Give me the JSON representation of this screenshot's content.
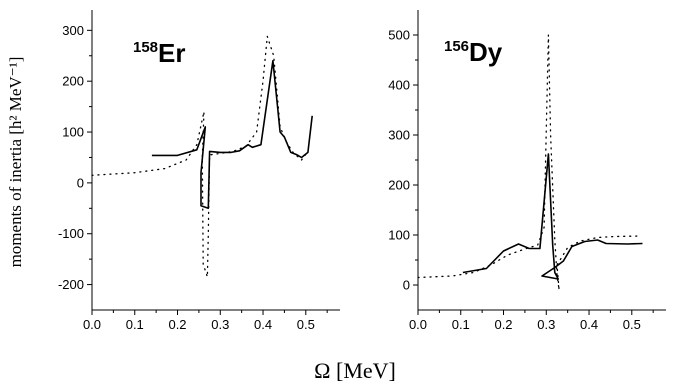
{
  "y_axis_label": "moments of inertia [h² MeV⁻¹]",
  "x_axis_label": "Ω  [MeV]",
  "chart_data": [
    {
      "type": "line",
      "id": "er",
      "nucleus_mass": "158",
      "nucleus_symbol": "Er",
      "xlim": [
        0.0,
        0.58
      ],
      "ylim": [
        -250,
        340
      ],
      "x_ticks": [
        0.0,
        0.1,
        0.2,
        0.3,
        0.4,
        0.5
      ],
      "x_tick_labels": [
        "0.0",
        "0.1",
        "0.2",
        "0.3",
        "0.4",
        "0.5"
      ],
      "y_ticks": [
        -200,
        -100,
        0,
        100,
        200,
        300
      ],
      "y_tick_labels": [
        "-200",
        "-100",
        "0",
        "100",
        "200",
        "300"
      ],
      "series": [
        {
          "style": "solid",
          "points": [
            [
              0.14,
              54
            ],
            [
              0.2,
              54
            ],
            [
              0.245,
              65
            ],
            [
              0.265,
              110
            ],
            [
              0.255,
              20
            ],
            [
              0.255,
              -45
            ],
            [
              0.272,
              -50
            ],
            [
              0.275,
              62
            ],
            [
              0.3,
              60
            ],
            [
              0.325,
              60
            ],
            [
              0.345,
              63
            ],
            [
              0.365,
              75
            ],
            [
              0.375,
              70
            ],
            [
              0.395,
              75
            ],
            [
              0.423,
              240
            ],
            [
              0.44,
              100
            ],
            [
              0.45,
              90
            ],
            [
              0.465,
              60
            ],
            [
              0.48,
              55
            ],
            [
              0.49,
              50
            ],
            [
              0.505,
              60
            ],
            [
              0.515,
              132
            ]
          ]
        },
        {
          "style": "dotted",
          "points": [
            [
              0.0,
              15
            ],
            [
              0.1,
              20
            ],
            [
              0.17,
              28
            ],
            [
              0.22,
              45
            ],
            [
              0.245,
              75
            ],
            [
              0.262,
              140
            ],
            [
              0.258,
              50
            ],
            [
              0.26,
              -160
            ],
            [
              0.27,
              -185
            ],
            [
              0.272,
              -100
            ],
            [
              0.275,
              55
            ],
            [
              0.3,
              58
            ],
            [
              0.33,
              62
            ],
            [
              0.36,
              72
            ],
            [
              0.385,
              100
            ],
            [
              0.4,
              200
            ],
            [
              0.41,
              288
            ],
            [
              0.425,
              250
            ],
            [
              0.44,
              110
            ],
            [
              0.455,
              80
            ],
            [
              0.47,
              60
            ],
            [
              0.49,
              45
            ],
            [
              0.505,
              62
            ]
          ]
        }
      ]
    },
    {
      "type": "line",
      "id": "dy",
      "nucleus_mass": "156",
      "nucleus_symbol": "Dy",
      "xlim": [
        0.0,
        0.58
      ],
      "ylim": [
        -50,
        550
      ],
      "x_ticks": [
        0.0,
        0.1,
        0.2,
        0.3,
        0.4,
        0.5
      ],
      "x_tick_labels": [
        "0.0",
        "0.1",
        "0.2",
        "0.3",
        "0.4",
        "0.5"
      ],
      "y_ticks": [
        0,
        100,
        200,
        300,
        400,
        500
      ],
      "y_tick_labels": [
        "0",
        "100",
        "200",
        "300",
        "400",
        "500"
      ],
      "series": [
        {
          "style": "solid",
          "points": [
            [
              0.105,
              25
            ],
            [
              0.16,
              33
            ],
            [
              0.2,
              68
            ],
            [
              0.235,
              82
            ],
            [
              0.26,
              73
            ],
            [
              0.285,
              73
            ],
            [
              0.305,
              262
            ],
            [
              0.315,
              80
            ],
            [
              0.32,
              25
            ],
            [
              0.328,
              12
            ],
            [
              0.29,
              18
            ],
            [
              0.32,
              35
            ],
            [
              0.34,
              48
            ],
            [
              0.36,
              77
            ],
            [
              0.39,
              87
            ],
            [
              0.42,
              90
            ],
            [
              0.44,
              83
            ],
            [
              0.49,
              82
            ],
            [
              0.525,
              83
            ]
          ]
        },
        {
          "style": "dotted",
          "points": [
            [
              0.0,
              15
            ],
            [
              0.08,
              18
            ],
            [
              0.13,
              25
            ],
            [
              0.17,
              40
            ],
            [
              0.21,
              60
            ],
            [
              0.25,
              72
            ],
            [
              0.28,
              80
            ],
            [
              0.295,
              115
            ],
            [
              0.305,
              500
            ],
            [
              0.31,
              300
            ],
            [
              0.32,
              90
            ],
            [
              0.325,
              20
            ],
            [
              0.33,
              -10
            ],
            [
              0.325,
              40
            ],
            [
              0.35,
              75
            ],
            [
              0.38,
              88
            ],
            [
              0.42,
              95
            ],
            [
              0.46,
              97
            ],
            [
              0.52,
              98
            ]
          ]
        }
      ]
    }
  ]
}
